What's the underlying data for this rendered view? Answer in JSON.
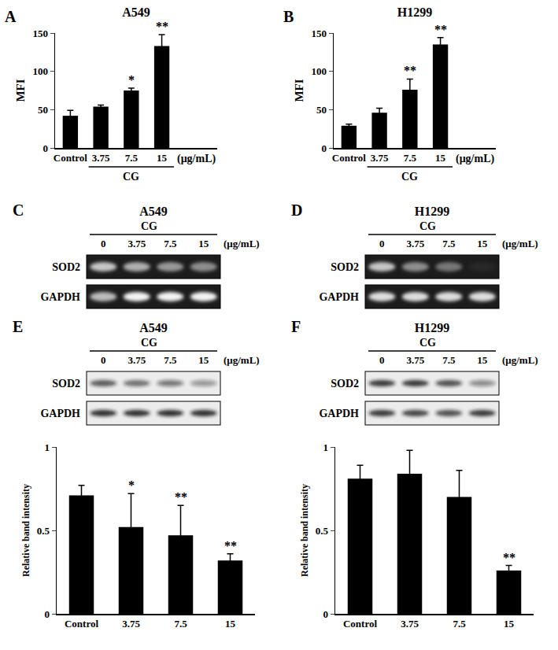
{
  "chart_data": [
    {
      "panel": "A",
      "type": "bar",
      "title": "A549",
      "y_label": "MFI",
      "categories": [
        "Control",
        "3.75",
        "7.5",
        "15"
      ],
      "group_label": "CG",
      "unit_label": "(μg/mL)",
      "values": [
        42,
        54,
        75,
        133
      ],
      "errors": [
        7,
        2,
        3,
        15
      ],
      "significance": [
        null,
        null,
        "*",
        "**"
      ],
      "color": "#000000",
      "ylim": [
        0,
        150
      ],
      "yticks": [
        0,
        50,
        100,
        150
      ],
      "grid": false
    },
    {
      "panel": "B",
      "type": "bar",
      "title": "H1299",
      "y_label": "MFI",
      "categories": [
        "Control",
        "3.75",
        "7.5",
        "15"
      ],
      "group_label": "CG",
      "unit_label": "(μg/mL)",
      "values": [
        29,
        46,
        76,
        135
      ],
      "errors": [
        2,
        6,
        14,
        9
      ],
      "significance": [
        null,
        null,
        "**",
        "**"
      ],
      "color": "#000000",
      "ylim": [
        0,
        150
      ],
      "yticks": [
        0,
        50,
        100,
        150
      ],
      "grid": false
    },
    {
      "type": "bar",
      "y_label": "Relative band intensity",
      "categories": [
        "Control",
        "3.75",
        "7.5",
        "15"
      ],
      "values": [
        0.71,
        0.52,
        0.47,
        0.32
      ],
      "errors": [
        0.06,
        0.2,
        0.18,
        0.04
      ],
      "significance": [
        null,
        "*",
        "**",
        "**"
      ],
      "color": "#000000",
      "ylim": [
        0,
        1
      ],
      "yticks": [
        0,
        0.5,
        1
      ],
      "grid": false
    },
    {
      "type": "bar",
      "y_label": "Relative band intensity",
      "categories": [
        "Control",
        "3.75",
        "7.5",
        "15"
      ],
      "values": [
        0.81,
        0.84,
        0.7,
        0.26
      ],
      "errors": [
        0.08,
        0.14,
        0.16,
        0.03
      ],
      "significance": [
        null,
        null,
        null,
        "**"
      ],
      "color": "#000000",
      "ylim": [
        0,
        1
      ],
      "yticks": [
        0,
        0.5,
        1
      ],
      "grid": false
    }
  ],
  "blots": [
    {
      "panel": "C",
      "type": "gel",
      "title": "A549",
      "group_label": "CG",
      "doses": [
        "0",
        "3.75",
        "7.5",
        "15"
      ],
      "unit_label": "(μg/mL)",
      "rows": [
        {
          "label": "SOD2",
          "band_intensity": [
            0.75,
            0.65,
            0.55,
            0.5
          ]
        },
        {
          "label": "GAPDH",
          "band_intensity": [
            0.7,
            0.95,
            0.95,
            0.95
          ]
        }
      ]
    },
    {
      "panel": "D",
      "type": "gel",
      "title": "H1299",
      "group_label": "CG",
      "doses": [
        "0",
        "3.75",
        "7.5",
        "15"
      ],
      "unit_label": "(μg/mL)",
      "rows": [
        {
          "label": "SOD2",
          "band_intensity": [
            0.75,
            0.5,
            0.4,
            0.05
          ]
        },
        {
          "label": "GAPDH",
          "band_intensity": [
            0.85,
            0.85,
            0.85,
            0.85
          ]
        }
      ]
    },
    {
      "panel": "E",
      "type": "western",
      "title": "A549",
      "group_label": "CG",
      "doses": [
        "0",
        "3.75",
        "7.5",
        "15"
      ],
      "unit_label": "(μg/mL)",
      "rows": [
        {
          "label": "SOD2",
          "band_intensity": [
            0.7,
            0.6,
            0.55,
            0.4
          ]
        },
        {
          "label": "GAPDH",
          "band_intensity": [
            0.9,
            0.9,
            0.9,
            0.9
          ]
        }
      ]
    },
    {
      "panel": "F",
      "type": "western",
      "title": "H1299",
      "group_label": "CG",
      "doses": [
        "0",
        "3.75",
        "7.5",
        "15"
      ],
      "unit_label": "(μg/mL)",
      "rows": [
        {
          "label": "SOD2",
          "band_intensity": [
            0.85,
            0.85,
            0.75,
            0.45
          ]
        },
        {
          "label": "GAPDH",
          "band_intensity": [
            0.85,
            0.8,
            0.75,
            0.85
          ]
        }
      ]
    }
  ]
}
